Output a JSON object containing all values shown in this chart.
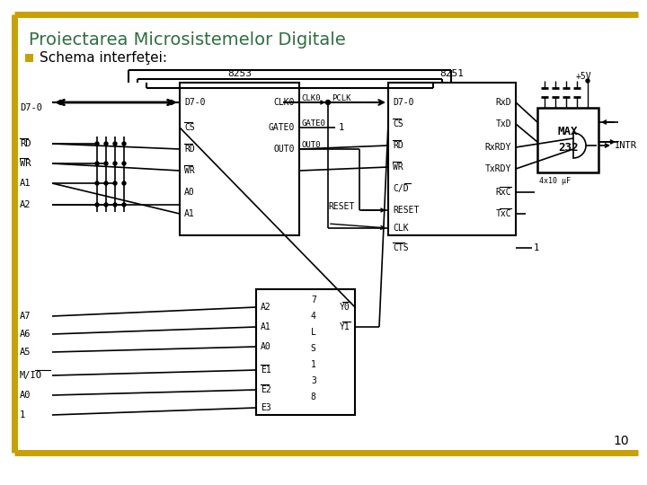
{
  "title": "Proiectarea Microsistemelor Digitale",
  "subtitle": "Schema interfeţei:",
  "page_number": "10",
  "bg_color": "#ffffff",
  "title_color": "#2e7040",
  "border_color": "#c8a000",
  "text_color": "#000000",
  "bullet_color": "#c8a000"
}
